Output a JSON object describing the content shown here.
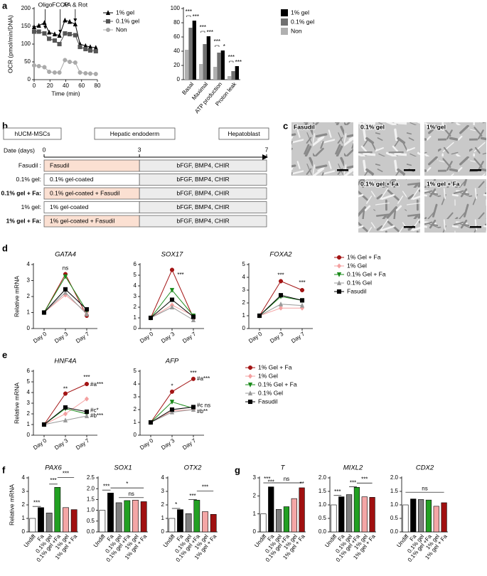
{
  "panel_labels": [
    "a",
    "b",
    "c",
    "d",
    "e",
    "f",
    "g"
  ],
  "chart_data": [
    {
      "type": "line",
      "ylabel": "OCR (pmol/min/DNA)",
      "xlabel": "Time (min)",
      "x": [
        0,
        6,
        13,
        19,
        26,
        32,
        39,
        45,
        52,
        58,
        65,
        71,
        78
      ],
      "series": [
        {
          "name": "1% gel",
          "color": "#000000",
          "marker": "triangle",
          "values": [
            148,
            152,
            160,
            133,
            128,
            124,
            167,
            163,
            156,
            100,
            95,
            92,
            90
          ]
        },
        {
          "name": "0.1% gel",
          "color": "#555555",
          "marker": "square",
          "values": [
            135,
            135,
            130,
            115,
            110,
            100,
            130,
            128,
            125,
            92,
            86,
            82,
            80
          ]
        },
        {
          "name": "Non",
          "color": "#aaaaaa",
          "marker": "circle",
          "values": [
            40,
            38,
            35,
            22,
            20,
            20,
            55,
            50,
            48,
            20,
            18,
            17,
            16
          ]
        }
      ],
      "xlim": [
        0,
        80
      ],
      "xticks": [
        0,
        20,
        40,
        60,
        80
      ],
      "ylim": [
        0,
        200
      ],
      "yticks": [
        0,
        50,
        100,
        150,
        200
      ],
      "annotations": [
        "Oligo",
        "FCCP",
        "AA & Rot"
      ],
      "legend": "right"
    },
    {
      "type": "bar",
      "categories": [
        "Basal",
        "Maximal",
        "ATP production",
        "Proton leak"
      ],
      "series": [
        {
          "name": "1% gel",
          "color": "#000000",
          "values": [
            83,
            61,
            41,
            19
          ]
        },
        {
          "name": "0.1% gel",
          "color": "#707070",
          "values": [
            73,
            50,
            38,
            12
          ]
        },
        {
          "name": "Non",
          "color": "#b0b0b0",
          "values": [
            42,
            22,
            18,
            5
          ]
        }
      ],
      "ylim": [
        0,
        100
      ],
      "yticks": [
        0,
        20,
        40,
        60,
        80,
        100
      ],
      "annotations": [
        "***",
        "***",
        "***",
        "***",
        "***",
        "*",
        "***",
        "***"
      ],
      "legend": "right"
    },
    {
      "type": "line",
      "title": "GATA4",
      "ylabel": "Relative mRNA",
      "categories": [
        "Day 0",
        "Day 3",
        "Day 7"
      ],
      "series": [
        {
          "name": "1% Gel + Fa",
          "color": "#a31515",
          "marker": "circle",
          "values": [
            1,
            3.4,
            0.8
          ]
        },
        {
          "name": "1% Gel",
          "color": "#f4a0a0",
          "marker": "diamond",
          "values": [
            1,
            2.1,
            1.0
          ]
        },
        {
          "name": "0.1% Gel + Fa",
          "color": "#1a8a1a",
          "marker": "triangle-down",
          "values": [
            1,
            3.25,
            1.1
          ]
        },
        {
          "name": "0.1% Gel",
          "color": "#999999",
          "marker": "triangle",
          "values": [
            1,
            2.25,
            0.9
          ]
        },
        {
          "name": "Fasudil",
          "color": "#000000",
          "marker": "square",
          "values": [
            1,
            2.45,
            1.2
          ]
        }
      ],
      "ylim": [
        0,
        4
      ],
      "yticks": [
        0,
        1,
        2,
        3,
        4
      ],
      "annotations": [
        "ns"
      ]
    },
    {
      "type": "line",
      "title": "SOX17",
      "categories": [
        "Day 0",
        "Day 3",
        "Day 7"
      ],
      "series": [
        {
          "name": "1% Gel + Fa",
          "color": "#a31515",
          "marker": "circle",
          "values": [
            1,
            5.5,
            1.0
          ]
        },
        {
          "name": "1% Gel",
          "color": "#f4a0a0",
          "marker": "diamond",
          "values": [
            1,
            2.2,
            1.2
          ]
        },
        {
          "name": "0.1% Gel + Fa",
          "color": "#1a8a1a",
          "marker": "triangle-down",
          "values": [
            1,
            3.6,
            1.2
          ]
        },
        {
          "name": "0.1% Gel",
          "color": "#999999",
          "marker": "triangle",
          "values": [
            1,
            2.0,
            0.8
          ]
        },
        {
          "name": "Fasudil",
          "color": "#000000",
          "marker": "square",
          "values": [
            1,
            2.7,
            1.1
          ]
        }
      ],
      "ylim": [
        0,
        6
      ],
      "yticks": [
        0,
        1,
        2,
        3,
        4,
        5,
        6
      ],
      "annotations": [
        "***"
      ]
    },
    {
      "type": "line",
      "title": "FOXA2",
      "categories": [
        "Day 0",
        "Day 3",
        "Day 7"
      ],
      "series": [
        {
          "name": "1% Gel + Fa",
          "color": "#a31515",
          "marker": "circle",
          "values": [
            1,
            3.7,
            3.0
          ]
        },
        {
          "name": "1% Gel",
          "color": "#f4a0a0",
          "marker": "diamond",
          "values": [
            1,
            1.6,
            1.6
          ]
        },
        {
          "name": "0.1% Gel + Fa",
          "color": "#1a8a1a",
          "marker": "triangle-down",
          "values": [
            1,
            2.5,
            2.2
          ]
        },
        {
          "name": "0.1% Gel",
          "color": "#999999",
          "marker": "triangle",
          "values": [
            1,
            1.9,
            1.8
          ]
        },
        {
          "name": "Fasudil",
          "color": "#000000",
          "marker": "square",
          "values": [
            1,
            2.6,
            2.2
          ]
        }
      ],
      "ylim": [
        0,
        5
      ],
      "yticks": [
        0,
        1,
        2,
        3,
        4,
        5
      ],
      "annotations": [
        "***",
        "***"
      ],
      "legend": "right"
    },
    {
      "type": "line",
      "title": "HNF4A",
      "ylabel": "Relative mRNA",
      "categories": [
        "Day 0",
        "Day 3",
        "Day 7"
      ],
      "series": [
        {
          "name": "1% Gel + Fa",
          "color": "#a31515",
          "marker": "circle",
          "values": [
            1,
            3.9,
            4.8
          ]
        },
        {
          "name": "1% Gel",
          "color": "#f4a0a0",
          "marker": "diamond",
          "values": [
            1,
            2.0,
            3.4
          ]
        },
        {
          "name": "0.1% Gel + Fa",
          "color": "#1a8a1a",
          "marker": "triangle-down",
          "values": [
            1,
            2.5,
            2.0
          ]
        },
        {
          "name": "0.1% Gel",
          "color": "#999999",
          "marker": "triangle",
          "values": [
            1,
            1.4,
            1.8
          ]
        },
        {
          "name": "Fasudil",
          "color": "#000000",
          "marker": "square",
          "values": [
            1,
            2.6,
            2.2
          ]
        }
      ],
      "ylim": [
        0,
        6
      ],
      "yticks": [
        0,
        1,
        2,
        3,
        4,
        5,
        6
      ],
      "annotations": [
        "**",
        "***",
        "#a***",
        "#c*",
        "#b***"
      ]
    },
    {
      "type": "line",
      "title": "AFP",
      "categories": [
        "Day 0",
        "Day 3",
        "Day 7"
      ],
      "series": [
        {
          "name": "1% Gel + Fa",
          "color": "#a31515",
          "marker": "circle",
          "values": [
            1,
            3.4,
            4.4
          ]
        },
        {
          "name": "1% Gel",
          "color": "#f4a0a0",
          "marker": "diamond",
          "values": [
            1,
            1.9,
            2.0
          ]
        },
        {
          "name": "0.1% Gel + Fa",
          "color": "#1a8a1a",
          "marker": "triangle-down",
          "values": [
            1,
            2.6,
            2.1
          ]
        },
        {
          "name": "0.1% Gel",
          "color": "#999999",
          "marker": "triangle",
          "values": [
            1,
            1.8,
            2.0
          ]
        },
        {
          "name": "Fasudil",
          "color": "#000000",
          "marker": "square",
          "values": [
            1,
            2.0,
            2.2
          ]
        }
      ],
      "ylim": [
        0,
        5
      ],
      "yticks": [
        0,
        1,
        2,
        3,
        4,
        5
      ],
      "annotations": [
        "*",
        "***",
        "#a***",
        "#c ns",
        "#b**"
      ],
      "legend": "right"
    },
    {
      "type": "bar",
      "title": "PAX6",
      "ylabel": "Relative mRNA",
      "categories": [
        "Undiff",
        "Fa",
        "0.1% gel",
        "0.1% gel +Fa",
        "1% gel",
        "1% gel + Fa"
      ],
      "colors": [
        "#ffffff",
        "#000000",
        "#7f7f7f",
        "#22a022",
        "#f4a6a6",
        "#a01010"
      ],
      "values": [
        1.0,
        1.8,
        1.4,
        3.3,
        1.8,
        1.65
      ],
      "ylim": [
        0,
        4
      ],
      "yticks": [
        0,
        1,
        2,
        3,
        4
      ],
      "annotations": [
        "***",
        "***",
        "***"
      ]
    },
    {
      "type": "bar",
      "title": "SOX1",
      "categories": [
        "Undiff",
        "Fa",
        "0.1% gel",
        "0.1% gel +Fa",
        "1% gel",
        "1% gel + Fa"
      ],
      "colors": [
        "#ffffff",
        "#000000",
        "#7f7f7f",
        "#22a022",
        "#f4a6a6",
        "#a01010"
      ],
      "values": [
        1.0,
        1.8,
        1.35,
        1.45,
        1.47,
        1.4
      ],
      "ylim": [
        0,
        2.5
      ],
      "yticks": [
        {
          "value": 0,
          "label": "0.0"
        },
        0.5,
        {
          "value": 1,
          "label": "1.0"
        },
        1.5,
        {
          "value": 2,
          "label": "2.0"
        },
        2.5
      ],
      "annotations": [
        "***",
        "*",
        "ns"
      ]
    },
    {
      "type": "bar",
      "title": "OTX2",
      "categories": [
        "Undiff",
        "Fa",
        "0.1% gel",
        "0.1% gel +Fa",
        "1% gel",
        "1% gel + Fa"
      ],
      "colors": [
        "#ffffff",
        "#000000",
        "#7f7f7f",
        "#22a022",
        "#f4a6a6",
        "#a01010"
      ],
      "values": [
        1.0,
        1.65,
        1.35,
        2.35,
        1.5,
        1.3
      ],
      "ylim": [
        0,
        4
      ],
      "yticks": [
        0,
        1,
        2,
        3,
        4
      ],
      "annotations": [
        "*",
        "***",
        "***"
      ]
    },
    {
      "type": "bar",
      "title": "T",
      "categories": [
        "Undiff",
        "Fa",
        "0.1% gel",
        "0.1% gel +Fa",
        "1% gel",
        "1% gel + Fa"
      ],
      "colors": [
        "#ffffff",
        "#000000",
        "#7f7f7f",
        "#22a022",
        "#f4a6a6",
        "#a01010"
      ],
      "values": [
        1.0,
        2.5,
        1.25,
        1.4,
        1.85,
        2.45
      ],
      "ylim": [
        0,
        3
      ],
      "yticks": [
        0,
        1,
        2,
        3
      ],
      "annotations": [
        "***",
        "***",
        "ns",
        "**"
      ]
    },
    {
      "type": "bar",
      "title": "MIXL2",
      "categories": [
        "Undiff",
        "Fa",
        "0.1% gel",
        "0.1% gel +Fa",
        "1% gel",
        "1% gel + Fa"
      ],
      "colors": [
        "#ffffff",
        "#000000",
        "#7f7f7f",
        "#22a022",
        "#f4a6a6",
        "#a01010"
      ],
      "values": [
        1.0,
        1.3,
        1.38,
        1.65,
        1.3,
        1.28
      ],
      "ylim": [
        0,
        2
      ],
      "yticks": [
        {
          "value": 0,
          "label": "0.0"
        },
        0.5,
        {
          "value": 1,
          "label": "1.0"
        },
        1.5,
        {
          "value": 2,
          "label": "2.0"
        }
      ],
      "annotations": [
        "***",
        "***",
        "***"
      ]
    },
    {
      "type": "bar",
      "title": "CDX2",
      "categories": [
        "Undiff",
        "Fa",
        "0.1% gel",
        "0.1% gel +Fa",
        "1% gel",
        "1% gel + Fa"
      ],
      "colors": [
        "#ffffff",
        "#000000",
        "#7f7f7f",
        "#22a022",
        "#f4a6a6",
        "#a01010"
      ],
      "values": [
        1.0,
        1.22,
        1.2,
        1.18,
        0.95,
        1.08
      ],
      "ylim": [
        0,
        2
      ],
      "yticks": [
        {
          "value": 0,
          "label": "0.0"
        },
        0.5,
        {
          "value": 1,
          "label": "1.0"
        },
        1.5,
        {
          "value": 2,
          "label": "2.0"
        }
      ],
      "annotations": [
        "ns"
      ]
    }
  ],
  "schematic": {
    "stages": [
      "hUCM-MSCs",
      "Hepatic endoderm",
      "Hepatoblast"
    ],
    "date_label": "Date (days)",
    "days": [
      0,
      3,
      7
    ],
    "rows": [
      {
        "label": "Fasudil :",
        "color": "#000000",
        "pretreatment": "Fasudil",
        "fill": "#fbe0d2",
        "induction": "bFGF, BMP4, CHIR"
      },
      {
        "label": "0.1% gel:",
        "color": "#000000",
        "pretreatment": "0.1% gel-coated",
        "fill": "#ffffff",
        "induction": "bFGF, BMP4, CHIR"
      },
      {
        "label": "0.1% gel + Fa:",
        "color": "#3aa02a",
        "pretreatment": "0.1% gel-coated + Fasudil",
        "fill": "#fbe0d2",
        "induction": "bFGF, BMP4, CHIR"
      },
      {
        "label": "1% gel:",
        "color": "#000000",
        "pretreatment": "1% gel-coated",
        "fill": "#ffffff",
        "induction": "bFGF, BMP4, CHIR"
      },
      {
        "label": "1% gel + Fa:",
        "color": "#b01010",
        "pretreatment": "1% gel-coated + Fasudil",
        "fill": "#fbe0d2",
        "induction": "bFGF, BMP4, CHIR"
      }
    ]
  },
  "micrographs": {
    "label_color": "#1a1aff",
    "labels": [
      "Fasudil",
      "0.1% gel",
      "1% gel",
      "0.1% gel + Fa",
      "1% gel + Fa"
    ]
  }
}
